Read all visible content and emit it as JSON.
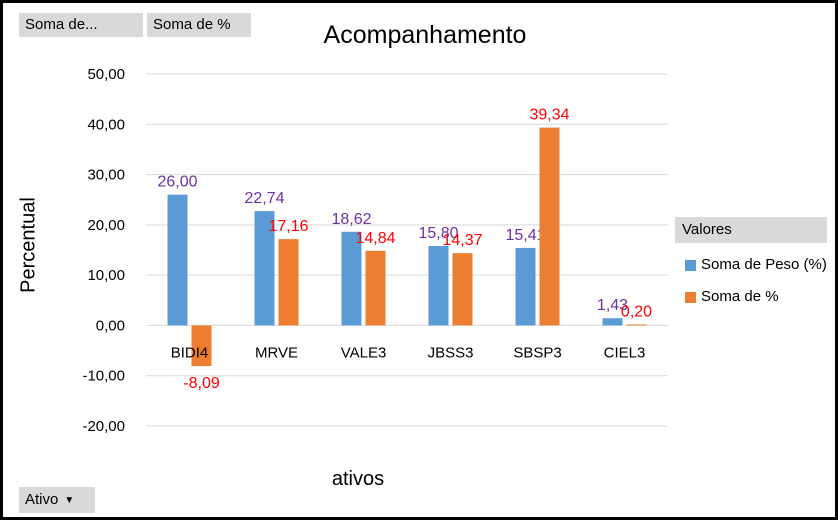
{
  "pivot_buttons": {
    "values_field_1": "Soma de...",
    "values_field_2": "Soma de %",
    "axis_field": "Ativo"
  },
  "chart_data": {
    "type": "bar",
    "title": "Acompanhamento",
    "xlabel": "ativos",
    "ylabel": "Percentual",
    "categories": [
      "BIDI4",
      "MRVE",
      "VALE3",
      "JBSS3",
      "SBSP3",
      "CIEL3"
    ],
    "series": [
      {
        "name": "Soma de Peso (%)",
        "values": [
          26.0,
          22.74,
          18.62,
          15.8,
          15.41,
          1.43
        ],
        "labels": [
          "26,00",
          "22,74",
          "18,62",
          "15,80",
          "15,41",
          "1,43"
        ],
        "color": "#5b9bd5",
        "label_color": "#7030a0"
      },
      {
        "name": "Soma de %",
        "values": [
          -8.09,
          17.16,
          14.84,
          14.37,
          39.34,
          0.2
        ],
        "labels": [
          "-8,09",
          "17,16",
          "14,84",
          "14,37",
          "39,34",
          "0,20"
        ],
        "color": "#ed7d31",
        "label_color": "#ff0000"
      }
    ],
    "ylim": [
      -20,
      50
    ],
    "yticks": [
      "50,00",
      "40,00",
      "30,00",
      "20,00",
      "10,00",
      "0,00",
      "-10,00",
      "-20,00"
    ],
    "grid": true,
    "legend": {
      "title": "Valores",
      "position": "right",
      "items": [
        "Soma de Peso (%)",
        "Soma de %"
      ]
    }
  }
}
